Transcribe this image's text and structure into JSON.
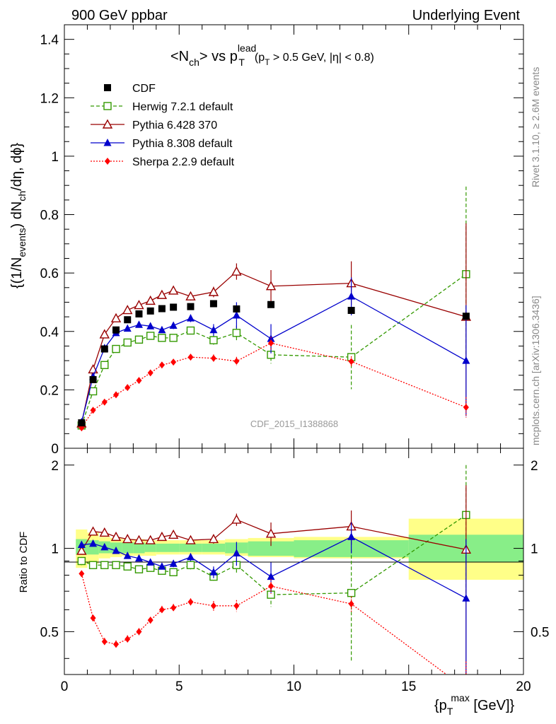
{
  "header": {
    "left_label": "900 GeV ppbar",
    "right_label": "Underlying Event",
    "title_main": "<N",
    "title_main_sub": "ch",
    "title_vs": "> vs p",
    "title_sup": "lead",
    "title_sub": "T",
    "title_cut_open": "(p",
    "title_cut_sub": "T",
    "title_cut_rest": " > 0.5 GeV, |η| < 0.8)"
  },
  "side": {
    "rivet_label": "Rivet 3.1.10, ≥ 2.6M events",
    "mcplots_label": "mcplots.cern.ch [arXiv:1306.3436]"
  },
  "watermark": "CDF_2015_I1388868",
  "axes": {
    "ylabel_main_parts": [
      "{(1/N",
      "events",
      ") dN",
      "ch",
      "/dη, dϕ}"
    ],
    "ylabel_ratio": "Ratio to CDF",
    "xlabel_parts": [
      "{p",
      "T",
      "max",
      " [GeV]}"
    ]
  },
  "chart_data": {
    "type": "scatter",
    "x_range": [
      0,
      20
    ],
    "main_y_range": [
      0,
      1.45
    ],
    "ratio_y_range": [
      0.35,
      2.3
    ],
    "ratio_log_scale": true,
    "x_ticks": [
      "0",
      "5",
      "10",
      "15",
      "20"
    ],
    "main_y_ticks": [
      "0",
      "0.2",
      "0.4",
      "0.6",
      "0.8",
      "1",
      "1.2",
      "1.4"
    ],
    "ratio_y_ticks": [
      "0.5",
      "1",
      "2"
    ],
    "x_values": [
      0.75,
      1.25,
      1.75,
      2.25,
      2.75,
      3.25,
      3.75,
      4.25,
      4.75,
      5.5,
      6.5,
      7.5,
      9.0,
      12.5,
      17.5
    ],
    "x_edges": [
      0.5,
      1.0,
      1.5,
      2.0,
      2.5,
      3.0,
      3.5,
      4.0,
      4.5,
      5.0,
      6.0,
      7.0,
      8.0,
      10.0,
      15.0,
      20.0
    ],
    "legend": [
      "CDF",
      "Herwig 7.2.1 default",
      "Pythia 6.428 370",
      "Pythia 8.308 default",
      "Sherpa 2.2.9 default"
    ],
    "reference": {
      "name": "CDF",
      "y": [
        0.087,
        0.235,
        0.34,
        0.405,
        0.44,
        0.46,
        0.47,
        0.478,
        0.483,
        0.485,
        0.495,
        0.477,
        0.492,
        0.472,
        0.452
      ]
    },
    "ratio_band_stat": [
      [
        0.95,
        1.08
      ],
      [
        0.95,
        1.07
      ],
      [
        0.96,
        1.06
      ],
      [
        0.96,
        1.05
      ],
      [
        0.96,
        1.05
      ],
      [
        0.96,
        1.05
      ],
      [
        0.97,
        1.04
      ],
      [
        0.97,
        1.04
      ],
      [
        0.97,
        1.04
      ],
      [
        0.97,
        1.04
      ],
      [
        0.97,
        1.04
      ],
      [
        0.96,
        1.05
      ],
      [
        0.94,
        1.06
      ],
      [
        0.93,
        1.07
      ],
      [
        0.89,
        1.12
      ]
    ],
    "ratio_band_total": [
      [
        0.85,
        1.17
      ],
      [
        0.88,
        1.14
      ],
      [
        0.92,
        1.1
      ],
      [
        0.93,
        1.09
      ],
      [
        0.94,
        1.08
      ],
      [
        0.94,
        1.08
      ],
      [
        0.94,
        1.07
      ],
      [
        0.95,
        1.07
      ],
      [
        0.95,
        1.07
      ],
      [
        0.95,
        1.07
      ],
      [
        0.95,
        1.07
      ],
      [
        0.94,
        1.08
      ],
      [
        0.93,
        1.09
      ],
      [
        0.92,
        1.1
      ],
      [
        0.77,
        1.28
      ]
    ],
    "series": [
      {
        "name": "Herwig 7.2.1 default",
        "style": "dashed",
        "marker": "open-square",
        "color": "#339900",
        "y": [
          0.078,
          0.195,
          0.285,
          0.34,
          0.362,
          0.372,
          0.385,
          0.378,
          0.378,
          0.403,
          0.37,
          0.395,
          0.32,
          0.312,
          0.596
        ],
        "err": [
          0.005,
          0.008,
          0.008,
          0.008,
          0.008,
          0.008,
          0.01,
          0.01,
          0.012,
          0.013,
          0.016,
          0.025,
          0.03,
          0.11,
          0.3
        ],
        "ratio": [
          0.9,
          0.87,
          0.87,
          0.87,
          0.86,
          0.84,
          0.85,
          0.83,
          0.82,
          0.87,
          0.79,
          0.87,
          0.68,
          0.69,
          1.32
        ],
        "ratio_err": [
          0.03,
          0.02,
          0.02,
          0.02,
          0.02,
          0.02,
          0.02,
          0.02,
          0.025,
          0.03,
          0.035,
          0.055,
          0.065,
          0.3,
          0.68
        ]
      },
      {
        "name": "Pythia 6.428 370",
        "style": "solid",
        "marker": "open-triangle",
        "color": "#990000",
        "y": [
          0.085,
          0.27,
          0.39,
          0.445,
          0.473,
          0.49,
          0.505,
          0.525,
          0.54,
          0.52,
          0.535,
          0.605,
          0.555,
          0.565,
          0.45
        ],
        "err": [
          0.005,
          0.008,
          0.008,
          0.008,
          0.008,
          0.008,
          0.01,
          0.01,
          0.012,
          0.014,
          0.018,
          0.028,
          0.055,
          0.075,
          0.32
        ],
        "ratio": [
          0.98,
          1.15,
          1.14,
          1.1,
          1.08,
          1.07,
          1.07,
          1.1,
          1.12,
          1.07,
          1.08,
          1.27,
          1.13,
          1.2,
          0.99
        ],
        "ratio_err": [
          0.03,
          0.02,
          0.02,
          0.02,
          0.02,
          0.02,
          0.02,
          0.02,
          0.025,
          0.03,
          0.04,
          0.065,
          0.11,
          0.17,
          0.7
        ]
      },
      {
        "name": "Pythia 8.308 default",
        "style": "solid",
        "marker": "filled-triangle",
        "color": "#0000cc",
        "y": [
          0.09,
          0.245,
          0.343,
          0.395,
          0.41,
          0.423,
          0.418,
          0.405,
          0.42,
          0.445,
          0.405,
          0.455,
          0.375,
          0.52,
          0.3
        ],
        "err": [
          0.005,
          0.008,
          0.008,
          0.008,
          0.008,
          0.008,
          0.01,
          0.01,
          0.012,
          0.013,
          0.02,
          0.045,
          0.05,
          0.065,
          0.19
        ],
        "ratio": [
          1.03,
          1.04,
          1.01,
          0.98,
          0.94,
          0.92,
          0.89,
          0.86,
          0.88,
          0.93,
          0.82,
          0.96,
          0.79,
          1.1,
          0.66
        ],
        "ratio_err": [
          0.03,
          0.02,
          0.02,
          0.02,
          0.02,
          0.02,
          0.02,
          0.02,
          0.025,
          0.03,
          0.04,
          0.095,
          0.1,
          0.14,
          0.42
        ]
      },
      {
        "name": "Sherpa 2.2.9 default",
        "style": "dotted",
        "marker": "filled-diamond",
        "color": "#ff0000",
        "y": [
          0.07,
          0.13,
          0.158,
          0.183,
          0.208,
          0.232,
          0.258,
          0.285,
          0.295,
          0.312,
          0.308,
          0.298,
          0.36,
          0.297,
          0.14
        ],
        "err": [
          0.004,
          0.006,
          0.006,
          0.006,
          0.006,
          0.006,
          0.008,
          0.008,
          0.009,
          0.01,
          0.013,
          0.015,
          0.022,
          0.018,
          0.035
        ],
        "ratio": [
          0.81,
          0.56,
          0.46,
          0.45,
          0.47,
          0.5,
          0.55,
          0.6,
          0.61,
          0.64,
          0.62,
          0.62,
          0.73,
          0.63,
          0.31
        ],
        "ratio_err": [
          0.02,
          0.015,
          0.015,
          0.015,
          0.015,
          0.015,
          0.015,
          0.02,
          0.02,
          0.02,
          0.025,
          0.03,
          0.045,
          0.04,
          0.08
        ]
      }
    ],
    "reference_color": "#000000",
    "band_stat_color": "#88ee88",
    "band_total_color": "#ffff88"
  }
}
